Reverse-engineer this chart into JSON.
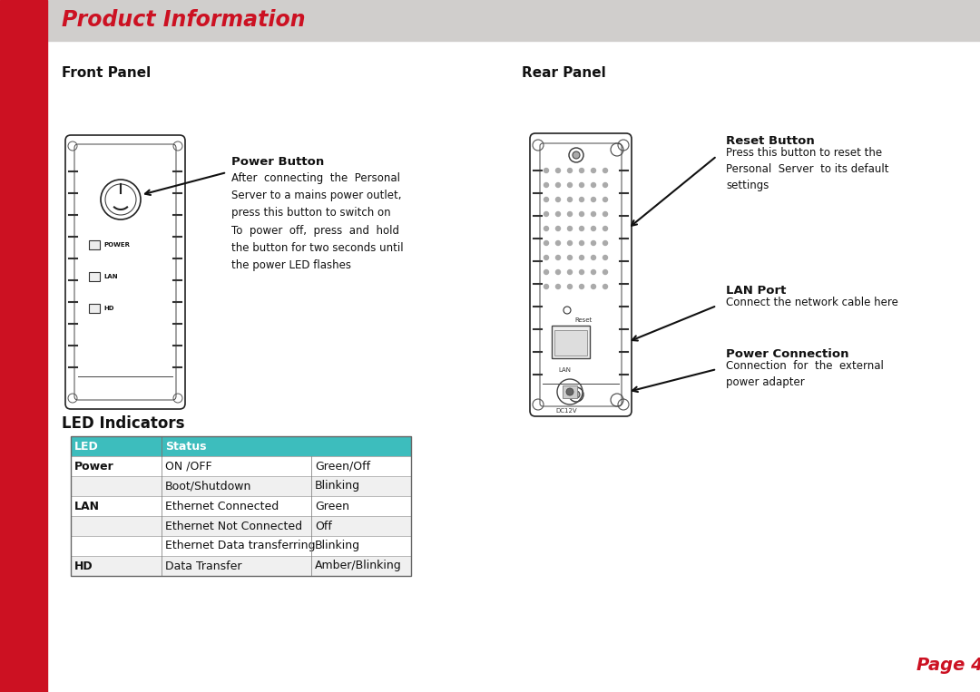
{
  "title": "Product Information",
  "title_color": "#CC1122",
  "title_bg_color": "#D0CECC",
  "red_bar_color": "#CC1122",
  "page_bg": "#FFFFFF",
  "section_front": "Front Panel",
  "section_rear": "Rear Panel",
  "section_led": "LED Indicators",
  "page_label": "Page 4",
  "power_btn_title": "Power Button",
  "power_btn_text1": "After  connecting  the  Personal\nServer to a mains power outlet,\npress this button to switch on",
  "power_btn_text2": "To  power  off,  press  and  hold\nthe button for two seconds until\nthe power LED flashes",
  "reset_title": "Reset Button",
  "reset_text": "Press this button to reset the\nPersonal  Server  to its default\nsettings",
  "lan_title": "LAN Port",
  "lan_text": "Connect the network cable here",
  "pwr_conn_title": "Power Connection",
  "pwr_conn_text": "Connection  for  the  external\npower adapter",
  "table_header_bg": "#3DBDBD",
  "table_header_text": "#FFFFFF",
  "table_data": [
    [
      "LED",
      "Status",
      ""
    ],
    [
      "Power",
      "ON /OFF",
      "Green/Off"
    ],
    [
      "",
      "Boot/Shutdown",
      "Blinking"
    ],
    [
      "LAN",
      "Ethernet Connected",
      "Green"
    ],
    [
      "",
      "Ethernet Not Connected",
      "Off"
    ],
    [
      "",
      "Ethernet Data transferring",
      "Blinking"
    ],
    [
      "HD",
      "Data Transfer",
      "Amber/Blinking"
    ]
  ]
}
